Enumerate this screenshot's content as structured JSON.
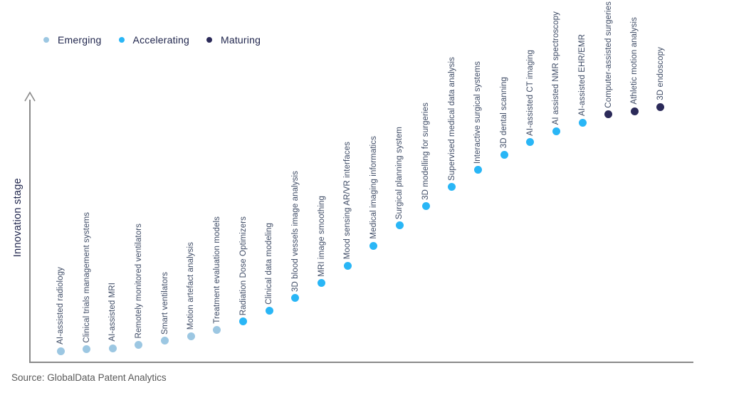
{
  "legend": {
    "items": [
      {
        "label": "Emerging",
        "color": "#9cc7e2"
      },
      {
        "label": "Accelerating",
        "color": "#29b6f6"
      },
      {
        "label": "Maturing",
        "color": "#2b2a59"
      }
    ]
  },
  "stage_colors": {
    "Emerging": "#9cc7e2",
    "Accelerating": "#29b6f6",
    "Maturing": "#2b2a59"
  },
  "axis_color": "#8a8a8a",
  "source": "Source: GlobalData Patent Analytics",
  "chart_data": {
    "type": "scatter",
    "title": "",
    "xlabel": "",
    "ylabel": "Innovation stage",
    "grid": false,
    "legend_position": "top-left",
    "x_axis": "technologies ordered left-to-right by maturity (no tick labels)",
    "y_axis": "innovation stage, unlabeled arrow axis; levels estimated 0-100",
    "ylim": [
      0,
      100
    ],
    "stages": [
      "Emerging",
      "Accelerating",
      "Maturing"
    ],
    "points": [
      {
        "label": "AI-assisted radiology",
        "stage": "Emerging",
        "innovation_level": 4.5
      },
      {
        "label": "Clinical trials management systems",
        "stage": "Emerging",
        "innovation_level": 5.1
      },
      {
        "label": "AI-assisted MRI",
        "stage": "Emerging",
        "innovation_level": 5.6
      },
      {
        "label": "Remotely monitored ventilators",
        "stage": "Emerging",
        "innovation_level": 6.9
      },
      {
        "label": "Smart ventilators",
        "stage": "Emerging",
        "innovation_level": 8.3
      },
      {
        "label": "Motion artefact analysis",
        "stage": "Emerging",
        "innovation_level": 10.1
      },
      {
        "label": "Treatment evaluation models",
        "stage": "Emerging",
        "innovation_level": 12.5
      },
      {
        "label": "Radiation Dose Optimizers",
        "stage": "Accelerating",
        "innovation_level": 15.5
      },
      {
        "label": "Clinical data modeling",
        "stage": "Accelerating",
        "innovation_level": 19.5
      },
      {
        "label": "3D blood vessels image analysis",
        "stage": "Accelerating",
        "innovation_level": 24.3
      },
      {
        "label": "MRI image smoothing",
        "stage": "Accelerating",
        "innovation_level": 29.9
      },
      {
        "label": "Mood sensing AR/VR interfaces",
        "stage": "Accelerating",
        "innovation_level": 36.5
      },
      {
        "label": "Medical imaging informatics",
        "stage": "Accelerating",
        "innovation_level": 44.0
      },
      {
        "label": "Surgical planning system",
        "stage": "Accelerating",
        "innovation_level": 51.5
      },
      {
        "label": "3D modelling for surgeries",
        "stage": "Accelerating",
        "innovation_level": 58.7
      },
      {
        "label": "Supervised medical data analysis",
        "stage": "Accelerating",
        "innovation_level": 65.9
      },
      {
        "label": "Interactive surgical systems",
        "stage": "Accelerating",
        "innovation_level": 72.3
      },
      {
        "label": "3D dental scanning",
        "stage": "Accelerating",
        "innovation_level": 78.1
      },
      {
        "label": "AI-assisted CT imaging",
        "stage": "Accelerating",
        "innovation_level": 82.7
      },
      {
        "label": "AI assisted NMR spectroscopy",
        "stage": "Accelerating",
        "innovation_level": 86.9
      },
      {
        "label": "AI-assisted EHR/EMR",
        "stage": "Accelerating",
        "innovation_level": 90.1
      },
      {
        "label": "Computer-assisted surgeries",
        "stage": "Maturing",
        "innovation_level": 93.1
      },
      {
        "label": "Athletic motion analysis",
        "stage": "Maturing",
        "innovation_level": 94.4
      },
      {
        "label": "3D endoscopy",
        "stage": "Maturing",
        "innovation_level": 96.0
      }
    ]
  }
}
